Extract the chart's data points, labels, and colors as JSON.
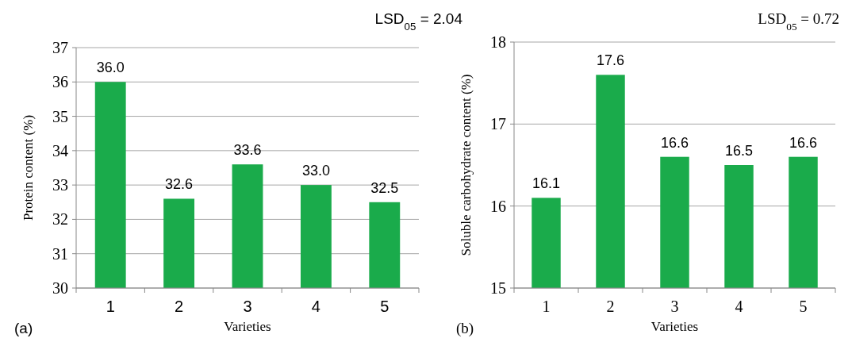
{
  "chart_data": [
    {
      "type": "bar",
      "xlabel": "Varieties",
      "ylabel": "Protein content (%)",
      "categories": [
        "1",
        "2",
        "3",
        "4",
        "5"
      ],
      "values": [
        36.0,
        32.6,
        33.6,
        33.0,
        32.5
      ],
      "value_labels": [
        "36.0",
        "32.6",
        "33.6",
        "33.0",
        "32.5"
      ],
      "color": "#1aab4b",
      "ylim": [
        30,
        37
      ],
      "yticks": [
        30,
        31,
        32,
        33,
        34,
        35,
        36,
        37
      ],
      "grid": "y",
      "annotations": [
        "LSD$_{05}$ = 2.04",
        "(a)"
      ]
    },
    {
      "type": "bar",
      "xlabel": "Varieties",
      "ylabel": "Soluble carbohydrate content (%)",
      "categories": [
        "1",
        "2",
        "3",
        "4",
        "5"
      ],
      "values": [
        16.1,
        17.6,
        16.6,
        16.5,
        16.6
      ],
      "value_labels": [
        "16.1",
        "17.6",
        "16.6",
        "16.5",
        "16.6"
      ],
      "color": "#1aab4b",
      "ylim": [
        15,
        18
      ],
      "yticks": [
        15,
        16,
        17,
        18
      ],
      "grid": "y",
      "annotations": [
        "LSD$_{05}$ = 0.72",
        "(b)"
      ]
    }
  ]
}
